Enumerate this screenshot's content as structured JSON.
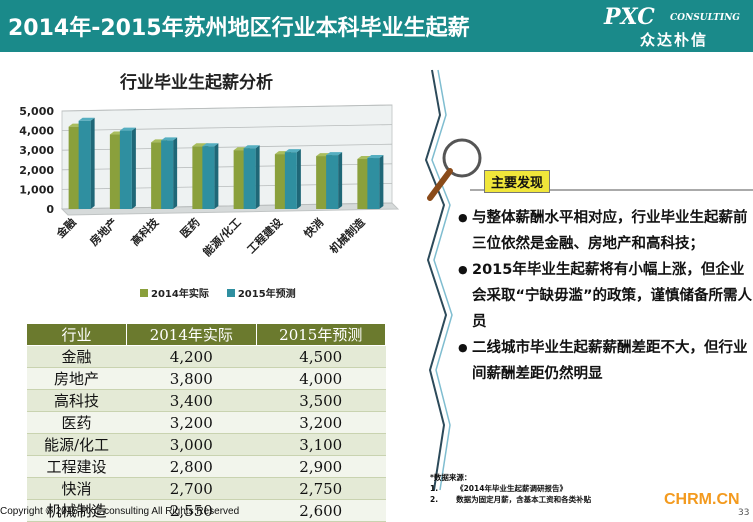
{
  "header": {
    "title": "2014年-2015年苏州地区行业本科毕业生起薪",
    "logo_main": "PXC",
    "logo_sub": "CONSULTING",
    "logo_cn": "众达朴信",
    "bg_color": "#1a8a8a"
  },
  "chart_data": {
    "type": "bar",
    "title": "行业毕业生起薪分析",
    "categories": [
      "金融",
      "房地产",
      "高科技",
      "医药",
      "能源/化工",
      "工程建设",
      "快消",
      "机械制造"
    ],
    "series": [
      {
        "name": "2014年实际",
        "values": [
          4200,
          3800,
          3400,
          3200,
          3000,
          2800,
          2700,
          2550
        ],
        "color": "#8aa03c"
      },
      {
        "name": "2015年预测",
        "values": [
          4500,
          4000,
          3500,
          3200,
          3100,
          2900,
          2750,
          2600
        ],
        "color": "#2f8fa0"
      }
    ],
    "ylim": [
      0,
      5000
    ],
    "yticks": [
      "0",
      "1,000",
      "2,000",
      "3,000",
      "4,000",
      "5,000"
    ],
    "legend_position": "bottom"
  },
  "table": {
    "headers": [
      "行业",
      "2014年实际",
      "2015年预测"
    ],
    "rows": [
      [
        "金融",
        "4,200",
        "4,500"
      ],
      [
        "房地产",
        "3,800",
        "4,000"
      ],
      [
        "高科技",
        "3,400",
        "3,500"
      ],
      [
        "医药",
        "3,200",
        "3,200"
      ],
      [
        "能源/化工",
        "3,000",
        "3,100"
      ],
      [
        "工程建设",
        "2,800",
        "2,900"
      ],
      [
        "快消",
        "2,700",
        "2,750"
      ],
      [
        "机械制造",
        "2,550",
        "2,600"
      ]
    ]
  },
  "findings": {
    "label": "主要发现",
    "bullets": [
      "与整体薪酬水平相对应，行业毕业生起薪前三位依然是金融、房地产和高科技；",
      "2015年毕业生起薪将有小幅上涨，但企业会采取“宁缺毋滥”的政策，谨慎储备所需人员",
      "二线城市毕业生起薪薪酬差距不大，但行业间薪酬差距仍然明显"
    ]
  },
  "sources": {
    "title": "*数据来源：",
    "items": [
      {
        "num": "1.",
        "text": "《2014年毕业生起薪调研报告》"
      },
      {
        "num": "2.",
        "text": "数据为固定月薪，含基本工资和各类补贴"
      }
    ]
  },
  "footer": {
    "copyright": "Copyright © 2015 PXC consulting All Rights Reserved",
    "site": "CHRM.CN",
    "page": "33"
  }
}
